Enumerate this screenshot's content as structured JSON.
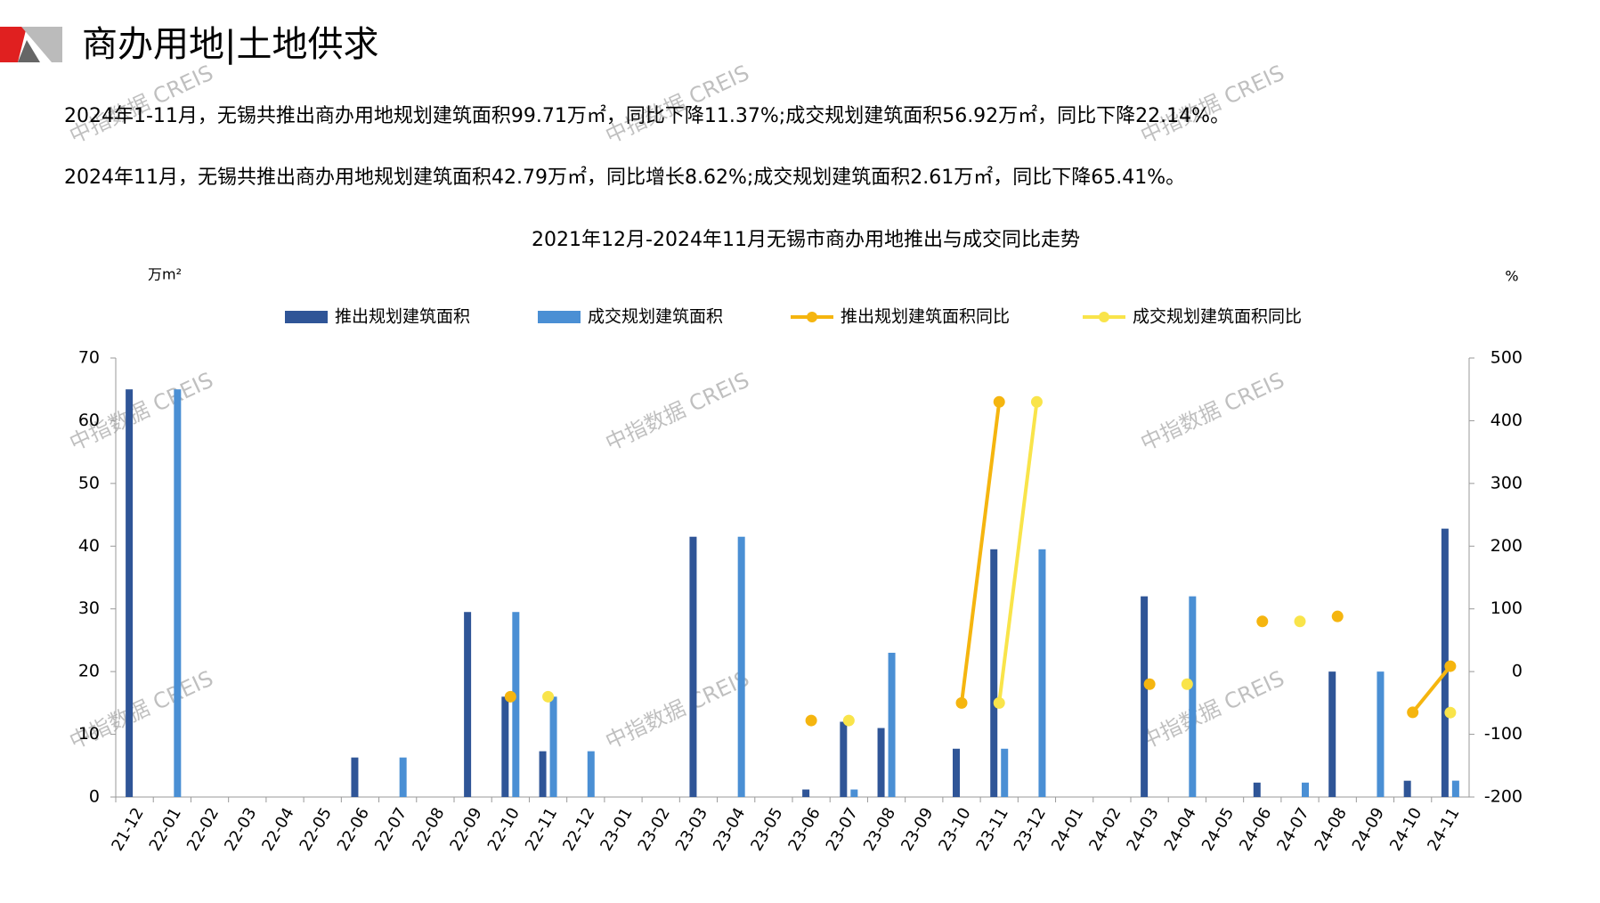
{
  "header": {
    "title": "商办用地|土地供求"
  },
  "paragraphs": [
    "2024年1-11月，无锡共推出商办用地规划建筑面积99.71万㎡，同比下降11.37%;成交规划建筑面积56.92万㎡，同比下降22.14%。",
    "2024年11月，无锡共推出商办用地规划建筑面积42.79万㎡，同比增长8.62%;成交规划建筑面积2.61万㎡，同比下降65.41%。"
  ],
  "watermark": "中指数据 CREIS",
  "chart_data": {
    "type": "bar",
    "title": "2021年12月-2024年11月无锡市商办用地推出与成交同比走势",
    "y_unit": "万m²",
    "y2_unit": "%",
    "categories": [
      "21-12",
      "22-01",
      "22-02",
      "22-03",
      "22-04",
      "22-05",
      "22-06",
      "22-07",
      "22-08",
      "22-09",
      "22-10",
      "22-11",
      "22-12",
      "23-01",
      "23-02",
      "23-03",
      "23-04",
      "23-05",
      "23-06",
      "23-07",
      "23-08",
      "23-09",
      "23-10",
      "23-11",
      "23-12",
      "24-01",
      "24-02",
      "24-03",
      "24-04",
      "24-05",
      "24-06",
      "24-07",
      "24-08",
      "24-09",
      "24-10",
      "24-11"
    ],
    "series": [
      {
        "name": "推出规划建筑面积",
        "type": "bar",
        "color": "#2f5597",
        "values": [
          65,
          null,
          null,
          null,
          null,
          null,
          6.3,
          null,
          null,
          29.5,
          16,
          7.3,
          null,
          null,
          null,
          41.5,
          null,
          null,
          1.2,
          12,
          11,
          null,
          7.7,
          39.5,
          null,
          null,
          null,
          32,
          null,
          null,
          2.3,
          null,
          20,
          null,
          2.6,
          42.79
        ]
      },
      {
        "name": "成交规划建筑面积",
        "type": "bar",
        "color": "#4a8fd4",
        "values": [
          null,
          65,
          null,
          null,
          null,
          null,
          null,
          6.3,
          null,
          null,
          29.5,
          16,
          7.3,
          null,
          null,
          null,
          41.5,
          null,
          null,
          1.2,
          23,
          null,
          null,
          7.7,
          39.5,
          null,
          null,
          null,
          32,
          null,
          null,
          2.3,
          null,
          20,
          null,
          2.61
        ]
      },
      {
        "name": "推出规划建筑面积同比",
        "type": "line",
        "axis": "y2",
        "color": "#f5b50f",
        "values": [
          null,
          null,
          null,
          null,
          null,
          null,
          null,
          null,
          null,
          null,
          -40,
          null,
          null,
          null,
          null,
          null,
          null,
          null,
          -78,
          null,
          null,
          null,
          -50,
          430,
          null,
          null,
          null,
          -20,
          null,
          null,
          80,
          null,
          88,
          null,
          -65,
          8.62
        ]
      },
      {
        "name": "成交规划建筑面积同比",
        "type": "line",
        "axis": "y2",
        "color": "#f9e44a",
        "values": [
          null,
          null,
          null,
          null,
          null,
          null,
          null,
          null,
          null,
          null,
          null,
          -40,
          null,
          null,
          null,
          null,
          null,
          null,
          null,
          -78,
          null,
          null,
          null,
          -50,
          430,
          null,
          null,
          null,
          -20,
          null,
          null,
          80,
          null,
          null,
          null,
          -65.41
        ]
      }
    ],
    "ylim": [
      0,
      70
    ],
    "yticks": [
      0,
      10,
      20,
      30,
      40,
      50,
      60,
      70
    ],
    "y2lim": [
      -200,
      500
    ],
    "y2ticks": [
      -200,
      -100,
      0,
      100,
      200,
      300,
      400,
      500
    ]
  }
}
